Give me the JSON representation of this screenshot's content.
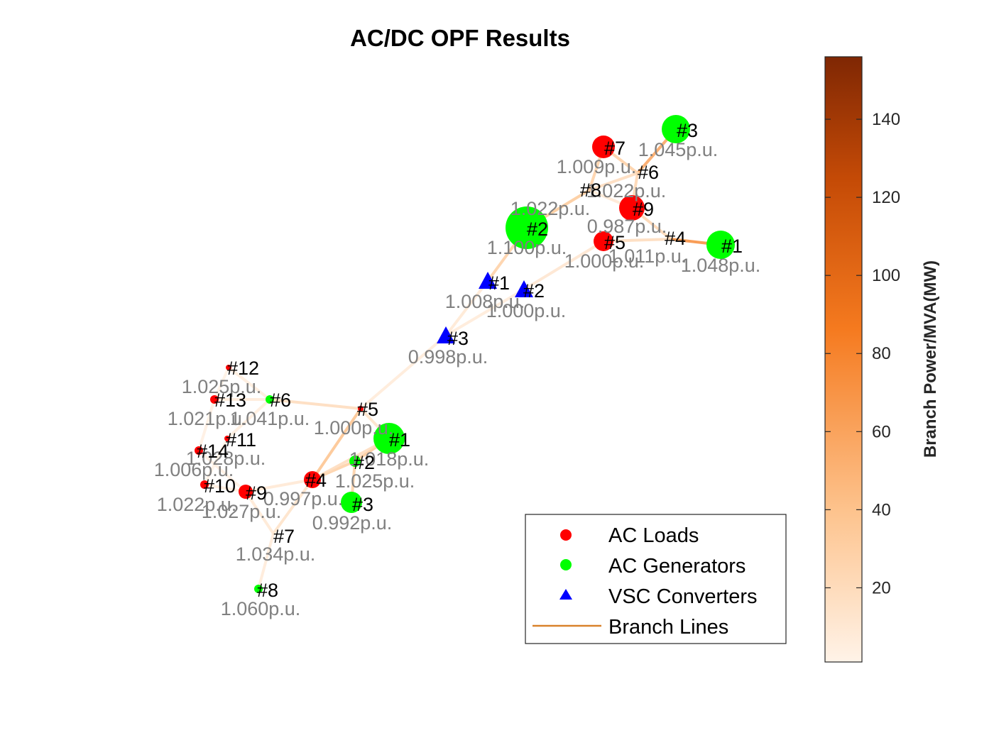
{
  "title": "AC/DC OPF Results",
  "legend": {
    "items": [
      {
        "label": "AC Loads",
        "marker": "circle",
        "color": "#ff0000"
      },
      {
        "label": "AC Generators",
        "marker": "circle",
        "color": "#00ff00"
      },
      {
        "label": "VSC Converters",
        "marker": "triangle",
        "color": "#0000ff"
      },
      {
        "label": "Branch Lines",
        "marker": "line",
        "color": "#d9822b"
      }
    ]
  },
  "colorbar": {
    "label": "Branch Power/MVA(MW)",
    "ticks": [
      "20",
      "40",
      "60",
      "80",
      "100",
      "120",
      "140"
    ],
    "min_color": "#fff3e8",
    "mid_color": "#f57a1f",
    "max_color": "#7f2704"
  },
  "colors": {
    "load": "#ff0000",
    "generator": "#00ff00",
    "converter": "#0000ff",
    "voltage_text": "#808080"
  },
  "nodes": [
    {
      "id": "#3",
      "voltage": "1.045p.u.",
      "kind": "generator"
    },
    {
      "id": "#7",
      "voltage": "1.009p.u.",
      "kind": "load"
    },
    {
      "id": "#6",
      "voltage": "1.022p.u.",
      "kind": "bus"
    },
    {
      "id": "#8",
      "voltage": "1.022p.u.",
      "kind": "bus"
    },
    {
      "id": "#9",
      "voltage": "0.987p.u.",
      "kind": "load"
    },
    {
      "id": "#2",
      "voltage": "1.100p.u.",
      "kind": "generator"
    },
    {
      "id": "#4",
      "voltage": "1.011p.u.",
      "kind": "bus"
    },
    {
      "id": "#5",
      "voltage": "1.000p.u.",
      "kind": "load"
    },
    {
      "id": "#1",
      "voltage": "1.048p.u.",
      "kind": "generator"
    },
    {
      "id": "#1",
      "voltage": "1.008p.u.",
      "kind": "converter"
    },
    {
      "id": "#2",
      "voltage": "1.000p.u.",
      "kind": "converter"
    },
    {
      "id": "#3",
      "voltage": "0.998p.u.",
      "kind": "converter"
    },
    {
      "id": "#12",
      "voltage": "1.025p.u.",
      "kind": "load"
    },
    {
      "id": "#13",
      "voltage": "1.021p.u.",
      "kind": "load"
    },
    {
      "id": "#6",
      "voltage": "1.041p.u.",
      "kind": "generator"
    },
    {
      "id": "#5",
      "voltage": "1.000p.u.",
      "kind": "load"
    },
    {
      "id": "#11",
      "voltage": "1.028p.u.",
      "kind": "load"
    },
    {
      "id": "#1",
      "voltage": "1.018p.u.",
      "kind": "generator"
    },
    {
      "id": "#14",
      "voltage": "1.006p.u.",
      "kind": "load"
    },
    {
      "id": "#2",
      "voltage": "1.025p.u.",
      "kind": "generator"
    },
    {
      "id": "#4",
      "voltage": "0.997p.u.",
      "kind": "load"
    },
    {
      "id": "#10",
      "voltage": "1.022p.u.",
      "kind": "load"
    },
    {
      "id": "#9",
      "voltage": "1.027p.u.",
      "kind": "load"
    },
    {
      "id": "#3",
      "voltage": "0.992p.u.",
      "kind": "generator"
    },
    {
      "id": "#7",
      "voltage": "1.034p.u.",
      "kind": "bus"
    },
    {
      "id": "#8",
      "voltage": "1.060p.u.",
      "kind": "generator"
    }
  ],
  "branches": [
    {
      "from": 0,
      "to": 2,
      "power": 60
    },
    {
      "from": 1,
      "to": 2,
      "power": 30
    },
    {
      "from": 2,
      "to": 3,
      "power": 20
    },
    {
      "from": 2,
      "to": 4,
      "power": 25
    },
    {
      "from": 3,
      "to": 4,
      "power": 10
    },
    {
      "from": 3,
      "to": 5,
      "power": 35
    },
    {
      "from": 3,
      "to": 1,
      "power": 30
    },
    {
      "from": 4,
      "to": 6,
      "power": 25
    },
    {
      "from": 6,
      "to": 8,
      "power": 75
    },
    {
      "from": 6,
      "to": 7,
      "power": 20
    },
    {
      "from": 7,
      "to": 10,
      "power": 12
    },
    {
      "from": 5,
      "to": 9,
      "power": 30
    },
    {
      "from": 9,
      "to": 11,
      "power": 10
    },
    {
      "from": 10,
      "to": 11,
      "power": 8
    },
    {
      "from": 11,
      "to": 15,
      "power": 8
    },
    {
      "from": 15,
      "to": 17,
      "power": 15
    },
    {
      "from": 15,
      "to": 14,
      "power": 20
    },
    {
      "from": 15,
      "to": 20,
      "power": 40
    },
    {
      "from": 20,
      "to": 19,
      "power": 30
    },
    {
      "from": 17,
      "to": 19,
      "power": 35
    },
    {
      "from": 19,
      "to": 23,
      "power": 30
    },
    {
      "from": 17,
      "to": 20,
      "power": 20
    },
    {
      "from": 20,
      "to": 22,
      "power": 10
    },
    {
      "from": 20,
      "to": 24,
      "power": 15
    },
    {
      "from": 24,
      "to": 25,
      "power": 8
    },
    {
      "from": 24,
      "to": 22,
      "power": 10
    },
    {
      "from": 22,
      "to": 21,
      "power": 6
    },
    {
      "from": 22,
      "to": 18,
      "power": 4
    },
    {
      "from": 14,
      "to": 13,
      "power": 8
    },
    {
      "from": 14,
      "to": 12,
      "power": 6
    },
    {
      "from": 14,
      "to": 16,
      "power": 6
    },
    {
      "from": 13,
      "to": 18,
      "power": 4
    },
    {
      "from": 16,
      "to": 21,
      "power": 3
    },
    {
      "from": 12,
      "to": 13,
      "power": 3
    }
  ]
}
